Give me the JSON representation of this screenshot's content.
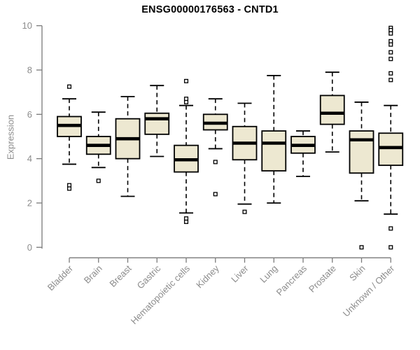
{
  "chart_data": {
    "type": "boxplot",
    "title": "ENSG00000176563 - CNTD1",
    "ylabel": "Expression",
    "ylim": [
      0,
      10
    ],
    "yticks": [
      0,
      2,
      4,
      6,
      8,
      10
    ],
    "grid": false,
    "legend": "none",
    "categories": [
      "Bladder",
      "Brain",
      "Breast",
      "Gastric",
      "Hematopoietic cells",
      "Kidney",
      "Liver",
      "Lung",
      "Pancreas",
      "Prostate",
      "Skin",
      "Unknown / Other"
    ],
    "boxes": [
      {
        "category": "Bladder",
        "low": 3.75,
        "q1": 5.0,
        "median": 5.5,
        "q3": 5.9,
        "high": 6.7,
        "outliers": [
          7.25,
          2.8,
          2.65
        ]
      },
      {
        "category": "Brain",
        "low": 3.6,
        "q1": 4.2,
        "median": 4.6,
        "q3": 5.0,
        "high": 6.1,
        "outliers": [
          3.0
        ]
      },
      {
        "category": "Breast",
        "low": 2.3,
        "q1": 4.0,
        "median": 4.9,
        "q3": 5.8,
        "high": 6.8,
        "outliers": []
      },
      {
        "category": "Gastric",
        "low": 4.1,
        "q1": 5.1,
        "median": 5.8,
        "q3": 6.05,
        "high": 7.3,
        "outliers": []
      },
      {
        "category": "Hematopoietic cells",
        "low": 1.55,
        "q1": 3.4,
        "median": 3.95,
        "q3": 4.6,
        "high": 6.4,
        "outliers": [
          7.5,
          6.7,
          6.55,
          1.3,
          1.15
        ]
      },
      {
        "category": "Kidney",
        "low": 4.45,
        "q1": 5.3,
        "median": 5.6,
        "q3": 6.0,
        "high": 6.7,
        "outliers": [
          3.85,
          2.4
        ]
      },
      {
        "category": "Liver",
        "low": 1.95,
        "q1": 3.95,
        "median": 4.7,
        "q3": 5.45,
        "high": 6.5,
        "outliers": [
          1.6
        ]
      },
      {
        "category": "Lung",
        "low": 2.0,
        "q1": 3.45,
        "median": 4.7,
        "q3": 5.25,
        "high": 7.75,
        "outliers": []
      },
      {
        "category": "Pancreas",
        "low": 3.2,
        "q1": 4.25,
        "median": 4.6,
        "q3": 5.0,
        "high": 5.25,
        "outliers": []
      },
      {
        "category": "Prostate",
        "low": 4.3,
        "q1": 5.55,
        "median": 6.05,
        "q3": 6.85,
        "high": 7.9,
        "outliers": []
      },
      {
        "category": "Skin",
        "low": 2.1,
        "q1": 3.35,
        "median": 4.85,
        "q3": 5.25,
        "high": 6.55,
        "outliers": [
          0.0
        ]
      },
      {
        "category": "Unknown / Other",
        "low": 1.5,
        "q1": 3.7,
        "median": 4.5,
        "q3": 5.15,
        "high": 6.4,
        "outliers": [
          9.9,
          9.8,
          9.65,
          9.3,
          9.15,
          8.8,
          8.5,
          7.85,
          7.55,
          0.85,
          0.0
        ]
      }
    ],
    "colors": {
      "box_fill": "#ede8d1",
      "box_border": "#000000",
      "median": "#000000",
      "whisker": "#000000",
      "outlier_fill": "#ffffff",
      "axis": "#7a7a7a",
      "tick_label": "#8c8c8c",
      "title": "#000000",
      "background": "#ffffff"
    }
  }
}
